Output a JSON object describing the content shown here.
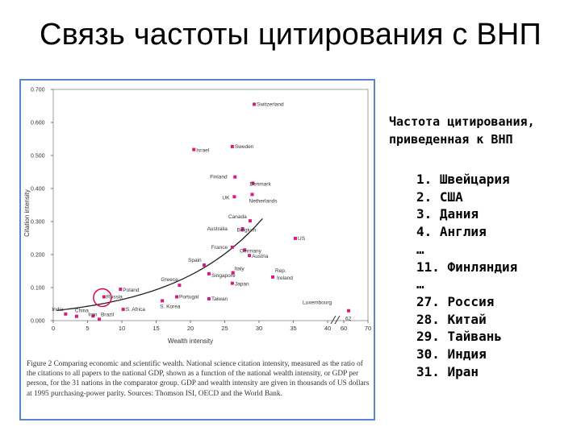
{
  "slide": {
    "title": "Связь частоты цитирования с ВНП",
    "subtitle_lines": [
      "Частота цитирования,",
      "приведенная к ВНП"
    ],
    "ranking": [
      "1. Швейцария",
      "2. США",
      "3. Дания",
      "4. Англия",
      "…",
      "11. Финляндия",
      "…",
      "27. Россия",
      "28. Китай",
      "29. Тайвань",
      "30. Индия",
      "31. Иран"
    ]
  },
  "figure": {
    "caption": "Figure 2 Comparing economic and scientific wealth. National science citation intensity, measured as the ratio of the citations to all papers to the national GDP, shown as a function of the national wealth intensity, or GDP per person, for the 31 nations in the comparator group. GDP and wealth intensity are given in thousands of US dollars at 1995 purchasing-power parity. Sources: Thomson ISI, OECD and the World Bank.",
    "border_color": "#5b86c4"
  },
  "chart_data": {
    "type": "scatter",
    "xlabel": "Wealth intensity",
    "ylabel": "Citation intensity",
    "xlim": [
      0,
      40
    ],
    "ylim": [
      0,
      0.7
    ],
    "x_ticks": [
      "0",
      "5",
      "10",
      "15",
      "20",
      "25",
      "30",
      "35",
      "40"
    ],
    "x_ticks_after_break": [
      "60",
      "70"
    ],
    "y_ticks": [
      "0.000",
      "0.100",
      "0.200",
      "0.300",
      "0.400",
      "0.500",
      "0.600",
      "0.700"
    ],
    "axis_break": true,
    "marker_color": "#d81b7e",
    "curve_color": "#222222",
    "highlight_color": "#e2004f",
    "points": [
      {
        "label": "Switzerland",
        "x": 29.3,
        "y": 0.655
      },
      {
        "label": "Sweden",
        "x": 26.1,
        "y": 0.527
      },
      {
        "label": "Israel",
        "x": 20.5,
        "y": 0.518
      },
      {
        "label": "Finland",
        "x": 26.5,
        "y": 0.435
      },
      {
        "label": "Denmark",
        "x": 29.1,
        "y": 0.416
      },
      {
        "label": "UK",
        "x": 26.4,
        "y": 0.375
      },
      {
        "label": "Netherlands",
        "x": 29.0,
        "y": 0.382
      },
      {
        "label": "Canada",
        "x": 28.7,
        "y": 0.302
      },
      {
        "label": "Australia",
        "x": 27.6,
        "y": 0.278
      },
      {
        "label": "Belgium",
        "x": 27.6,
        "y": 0.275
      },
      {
        "label": "US",
        "x": 35.3,
        "y": 0.249
      },
      {
        "label": "France",
        "x": 26.1,
        "y": 0.222
      },
      {
        "label": "Germany",
        "x": 27.9,
        "y": 0.214
      },
      {
        "label": "Austria",
        "x": 28.6,
        "y": 0.197
      },
      {
        "label": "Spain",
        "x": 22.0,
        "y": 0.168
      },
      {
        "label": "Italy",
        "x": 26.2,
        "y": 0.145
      },
      {
        "label": "Rep. Ireland",
        "x": 32.0,
        "y": 0.132
      },
      {
        "label": "Greece",
        "x": 18.4,
        "y": 0.107
      },
      {
        "label": "Singapore",
        "x": 22.7,
        "y": 0.142
      },
      {
        "label": "Japan",
        "x": 26.1,
        "y": 0.113
      },
      {
        "label": "Poland",
        "x": 9.8,
        "y": 0.095
      },
      {
        "label": "Portugal",
        "x": 18.0,
        "y": 0.072
      },
      {
        "label": "Taiwan",
        "x": 22.7,
        "y": 0.066
      },
      {
        "label": "Russia",
        "x": 7.4,
        "y": 0.072
      },
      {
        "label": "S. Korea",
        "x": 15.9,
        "y": 0.06
      },
      {
        "label": "S. Africa",
        "x": 10.2,
        "y": 0.034
      },
      {
        "label": "China",
        "x": 3.4,
        "y": 0.013
      },
      {
        "label": "India",
        "x": 1.8,
        "y": 0.02
      },
      {
        "label": "Iran",
        "x": 5.8,
        "y": 0.014
      },
      {
        "label": "Brazil",
        "x": 6.7,
        "y": 0.004
      },
      {
        "label": "Luxembourg",
        "x": 62,
        "y": 0.03,
        "x_tick_label": "62"
      }
    ],
    "highlighted_point": "Russia"
  }
}
